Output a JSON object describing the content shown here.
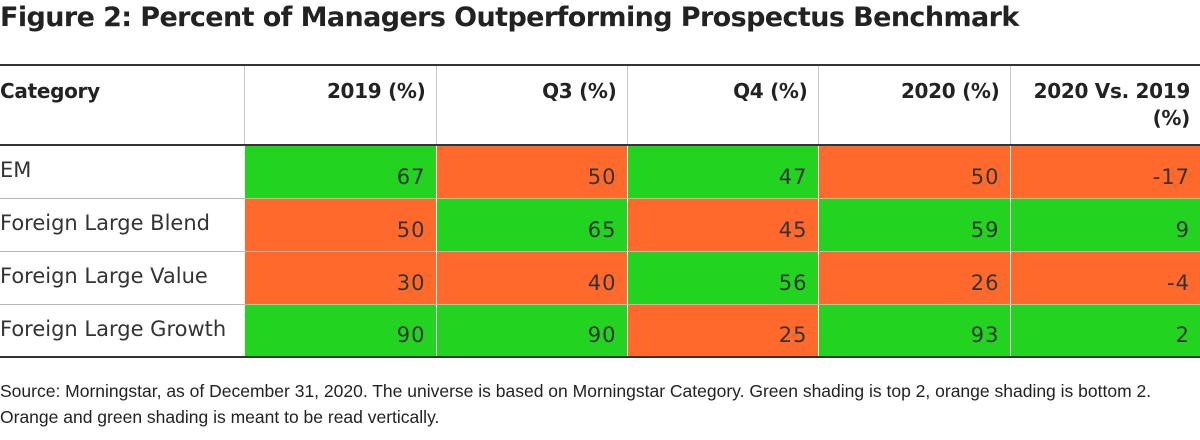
{
  "title": "Figure 2: Percent of Managers Outperforming Prospectus Benchmark",
  "colors": {
    "green": "#22d41f",
    "orange": "#ff6a2c"
  },
  "chart_data": {
    "type": "table",
    "title": "Figure 2: Percent of Managers Outperforming Prospectus Benchmark",
    "columns": [
      "Category",
      "2019 (%)",
      "Q3 (%)",
      "Q4 (%)",
      "2020 (%)",
      "2020 Vs. 2019 (%)"
    ],
    "rows": [
      {
        "category": "EM",
        "values": [
          67,
          50,
          47,
          50,
          -17
        ],
        "display": [
          "67",
          "50",
          "47",
          "50",
          "-17"
        ],
        "shading": [
          "green",
          "orange",
          "green",
          "orange",
          "orange"
        ]
      },
      {
        "category": "Foreign Large Blend",
        "values": [
          50,
          65,
          45,
          59,
          9
        ],
        "display": [
          "50",
          "65",
          "45",
          "59",
          "9"
        ],
        "shading": [
          "orange",
          "green",
          "orange",
          "green",
          "green"
        ]
      },
      {
        "category": "Foreign Large Value",
        "values": [
          30,
          40,
          56,
          26,
          -4
        ],
        "display": [
          "30",
          "40",
          "56",
          "26",
          "-4"
        ],
        "shading": [
          "orange",
          "orange",
          "green",
          "orange",
          "orange"
        ]
      },
      {
        "category": "Foreign Large Growth",
        "values": [
          90,
          90,
          25,
          93,
          2
        ],
        "display": [
          "90",
          "90",
          "25",
          "93",
          "2"
        ],
        "shading": [
          "green",
          "green",
          "orange",
          "green",
          "green"
        ]
      }
    ]
  },
  "source": "Source: Morningstar, as of December 31, 2020. The universe is based on Morningstar Category. Green shading is top 2, orange shading is bottom 2. Orange and green shading is meant to be read vertically."
}
